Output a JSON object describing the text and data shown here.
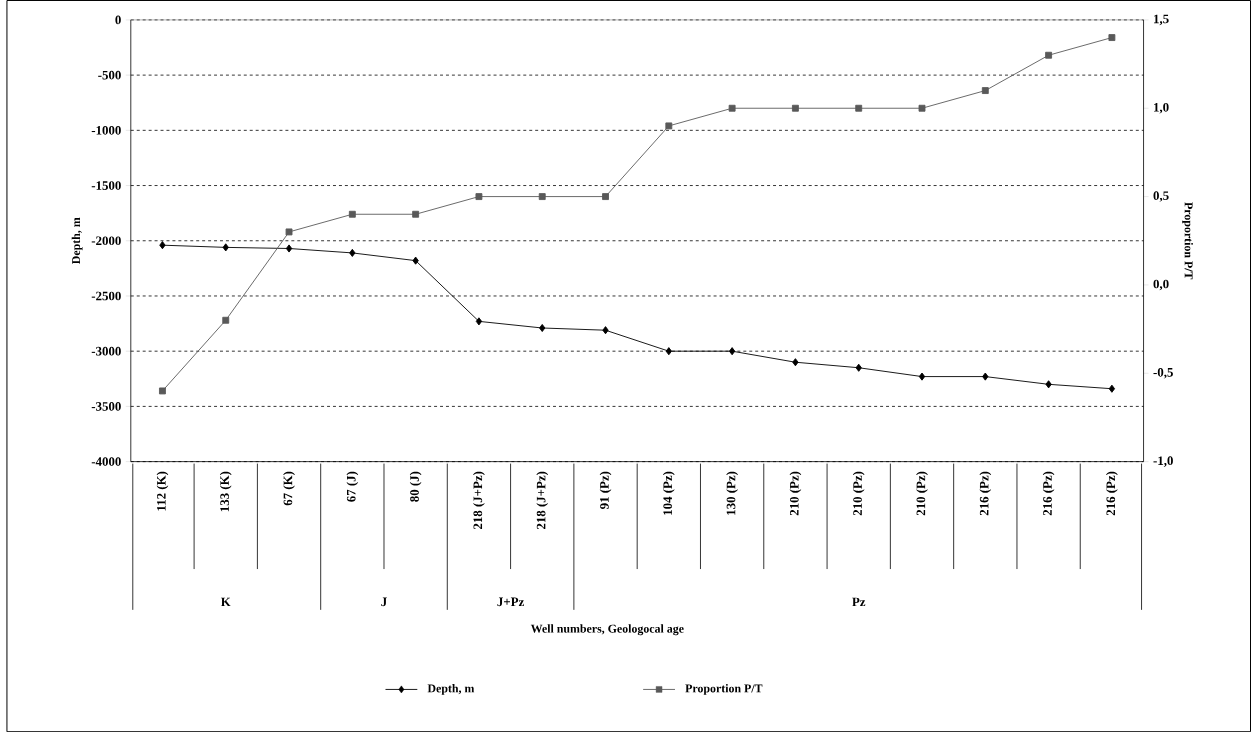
{
  "chart_data": {
    "type": "line",
    "ylabel": "Depth, m",
    "y2label": "Proportion P/T",
    "categories": [
      "112 (K)",
      "133 (K)",
      "67 (K)",
      "67 (J)",
      "80 (J)",
      "218 (J+Pz)",
      "218  (J+Pz)",
      "91 (Pz)",
      "104 (Pz)",
      "130 (Pz)",
      "210 (Pz)",
      "210 (Pz)",
      "210 (Pz)",
      "216 (Pz)",
      "216 (Pz)",
      "216 (Pz)"
    ],
    "series": [
      {
        "name": "Depth, m",
        "color": "#000000",
        "marker": "diamond",
        "values": [
          -2040,
          -2060,
          -2070,
          -2110,
          -2180,
          -2730,
          -2790,
          -2810,
          -3000,
          -3000,
          -3100,
          -3150,
          -3230,
          -3230,
          -3300,
          -3340
        ]
      },
      {
        "name": "Proportion P/T",
        "color": "#595959",
        "marker": "square",
        "axis": "y2",
        "values": [
          -0.6,
          -0.2,
          0.3,
          0.4,
          0.4,
          0.5,
          0.5,
          0.5,
          0.9,
          1.0,
          1.0,
          1.0,
          1.0,
          1.1,
          1.3,
          1.4
        ]
      }
    ],
    "ylim": [
      -4000,
      0
    ],
    "yticks": [
      -4000,
      -3500,
      -3000,
      -2500,
      -2000,
      -1500,
      -1000,
      -500,
      0
    ],
    "y2lim": [
      -1,
      1.5
    ],
    "y2ticks": [
      {
        "value": -1,
        "label": "-1,0"
      },
      {
        "value": -0.5,
        "label": "-0,5"
      },
      {
        "value": 0,
        "label": "0,0"
      },
      {
        "value": 0.5,
        "label": "0,5"
      },
      {
        "value": 1,
        "label": "1,0"
      },
      {
        "value": 1.5,
        "label": "1,5"
      }
    ],
    "annotations": [
      "K",
      "J",
      "J+Pz",
      "Pz",
      "Well numbers, Geologocal age"
    ],
    "grid": "y",
    "legend": "bottom",
    "line_style": "solid"
  }
}
